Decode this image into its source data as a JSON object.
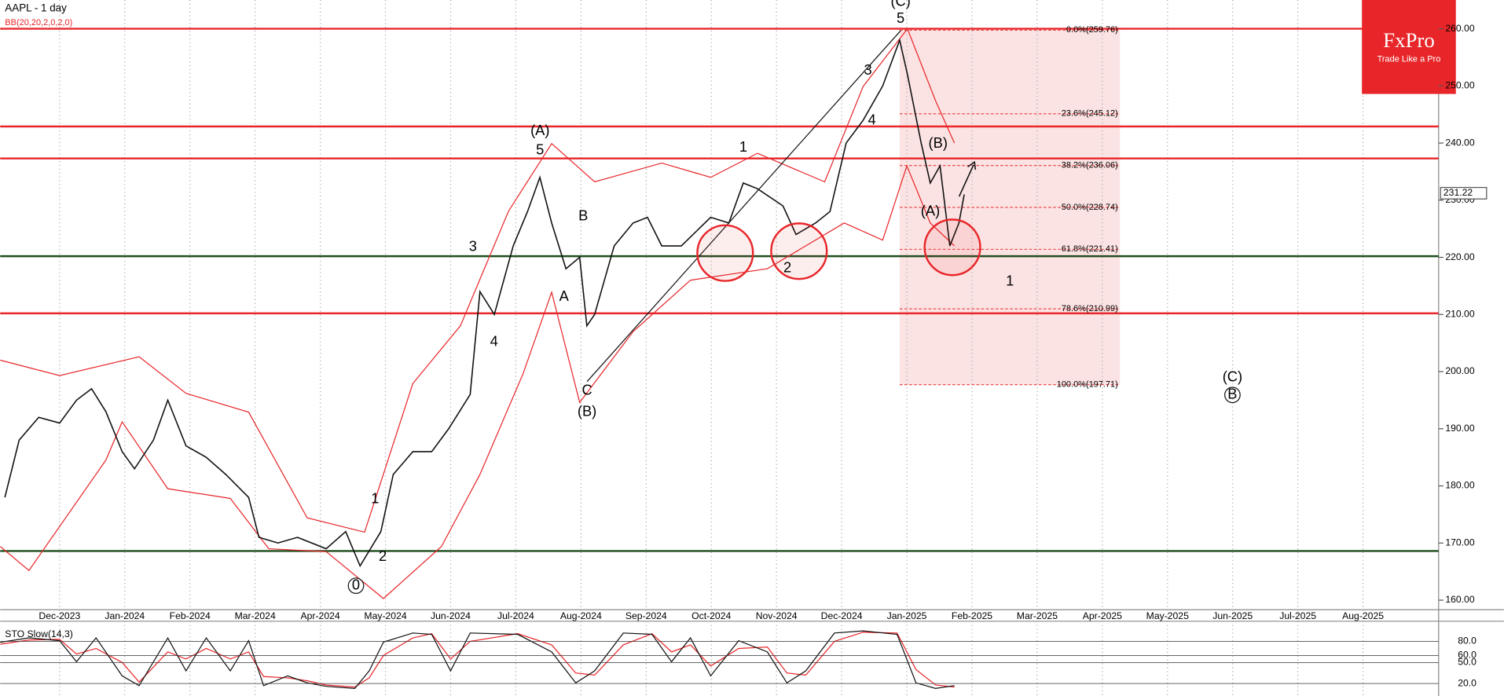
{
  "chart_data": {
    "type": "line",
    "title": "AAPL - 1 day",
    "color": "#111111",
    "x": [
      -0.84,
      -0.62,
      -0.32,
      0,
      0.26,
      0.49,
      0.71,
      0.96,
      1.15,
      1.44,
      1.66,
      1.94,
      2.25,
      2.55,
      2.9,
      3.06,
      3.35,
      3.65,
      4.09,
      4.39,
      4.61,
      4.93,
      5.12,
      5.42,
      5.71,
      5.97,
      6.3,
      6.45,
      6.67,
      6.96,
      7.18,
      7.37,
      7.55,
      7.77,
      7.98,
      8.09,
      8.21,
      8.51,
      8.8,
      9.02,
      9.24,
      9.54,
      9.99,
      10.27,
      10.49,
      10.71,
      11.1,
      11.3,
      11.6,
      11.82,
      12.07,
      12.33,
      12.63,
      12.89,
      13.01,
      13.22,
      13.36,
      13.51,
      13.66,
      13.8,
      13.88
    ],
    "values": [
      178,
      188,
      192,
      191,
      195,
      197,
      193,
      186,
      183,
      188,
      195,
      187,
      185,
      182,
      178,
      171,
      170,
      171,
      169,
      172,
      166,
      172,
      182,
      186,
      186,
      190,
      196,
      214,
      210,
      222,
      228,
      234,
      226,
      218,
      220,
      208,
      210,
      222,
      226,
      227,
      222,
      222,
      227,
      226,
      233,
      232,
      229,
      224,
      226,
      228,
      240,
      244,
      250,
      258,
      252,
      240,
      233,
      236,
      222,
      226,
      231
    ],
    "bollinger": {
      "label": "BB(20,20,2,0,2,0)",
      "color": "#e8262a",
      "upper": {
        "x": [
          -0.91,
          0,
          1.22,
          1.94,
          2.9,
          3.8,
          4.68,
          5.42,
          6.15,
          6.89,
          7.55,
          8.21,
          9.24,
          9.99,
          10.71,
          11.74,
          12.33,
          13.01,
          13.44,
          13.73
        ],
        "values": [
          202,
          199.3,
          202.6,
          196.2,
          192.9,
          174.4,
          171.9,
          197.9,
          208,
          228.1,
          239.9,
          233.2,
          236.5,
          234,
          238.2,
          233.2,
          249.9,
          260,
          247.4,
          240
        ]
      },
      "lower": {
        "x": [
          -0.91,
          -0.47,
          0.71,
          0.96,
          1.66,
          2.62,
          3.21,
          4.09,
          4.97,
          5.86,
          6.45,
          7.11,
          7.55,
          7.98,
          8.8,
          9.68,
          10.86,
          12.04,
          12.63,
          13.0,
          13.36,
          13.73
        ],
        "values": [
          169.4,
          165.2,
          184.5,
          191.2,
          179.5,
          177.8,
          169,
          168.5,
          160.3,
          169.4,
          182,
          199.6,
          213.9,
          194.6,
          207,
          216,
          218,
          226,
          223,
          236,
          226,
          222
        ]
      }
    },
    "xlim": [
      -0.912,
      21.16
    ],
    "xticks": [
      {
        "value": 0,
        "label": "Dec-2023"
      },
      {
        "value": 1,
        "label": "Jan-2024"
      },
      {
        "value": 2,
        "label": "Feb-2024"
      },
      {
        "value": 3,
        "label": "Mar-2024"
      },
      {
        "value": 4,
        "label": "Apr-2024"
      },
      {
        "value": 5,
        "label": "May-2024"
      },
      {
        "value": 6,
        "label": "Jun-2024"
      },
      {
        "value": 7,
        "label": "Jul-2024"
      },
      {
        "value": 8,
        "label": "Aug-2024"
      },
      {
        "value": 9,
        "label": "Sep-2024"
      },
      {
        "value": 10,
        "label": "Oct-2024"
      },
      {
        "value": 11,
        "label": "Nov-2024"
      },
      {
        "value": 12,
        "label": "Dec-2024"
      },
      {
        "value": 13,
        "label": "Jan-2025"
      },
      {
        "value": 14,
        "label": "Feb-2025"
      },
      {
        "value": 15,
        "label": "Mar-2025"
      },
      {
        "value": 16,
        "label": "Apr-2025"
      },
      {
        "value": 17,
        "label": "May-2025"
      },
      {
        "value": 18,
        "label": "Jun-2025"
      },
      {
        "value": 19,
        "label": "Jul-2025"
      },
      {
        "value": 20,
        "label": "Aug-2025"
      }
    ],
    "ylim": [
      158.33,
      265.03
    ],
    "yticks": [
      {
        "value": 160,
        "label": "160.00"
      },
      {
        "value": 170,
        "label": "170.00"
      },
      {
        "value": 180,
        "label": "180.00"
      },
      {
        "value": 190,
        "label": "190.00"
      },
      {
        "value": 200,
        "label": "200.00"
      },
      {
        "value": 210,
        "label": "210.00"
      },
      {
        "value": 220,
        "label": "220.00"
      },
      {
        "value": 230,
        "label": "230.00"
      },
      {
        "value": 240,
        "label": "240.00"
      },
      {
        "value": 250,
        "label": "250.00"
      },
      {
        "value": 260,
        "label": "260.00"
      }
    ],
    "last_price": 231.22,
    "levels": [
      {
        "value": 260,
        "color": "#e8262a"
      },
      {
        "value": 242.9,
        "color": "#e8262a"
      },
      {
        "value": 237.3,
        "color": "#e8262a"
      },
      {
        "value": 220.2,
        "color": "#1f4d1f"
      },
      {
        "value": 210.2,
        "color": "#e8262a"
      },
      {
        "value": 168.6,
        "color": "#1f4d1f"
      }
    ],
    "fib": {
      "x": [
        12.89,
        16.27
      ],
      "levels": [
        {
          "value": 259.76,
          "label": "0.0%(259.76)"
        },
        {
          "value": 245.12,
          "label": "23.6%(245.12)"
        },
        {
          "value": 236.06,
          "label": "38.2%(236.06)"
        },
        {
          "value": 228.74,
          "label": "50.0%(228.74)"
        },
        {
          "value": 221.41,
          "label": "61.8%(221.41)"
        },
        {
          "value": 210.99,
          "label": "78.6%(210.99)"
        },
        {
          "value": 197.71,
          "label": "100.0%(197.71)"
        }
      ]
    },
    "annotations": [
      "(A)",
      "5",
      "3",
      "4",
      "A",
      "B",
      "C",
      "(B)",
      "1",
      "2",
      "3",
      "4",
      "5",
      "(C)",
      "(B)",
      "(A)",
      "1",
      "(C)",
      "B",
      "0",
      "1",
      "2"
    ],
    "stochastic": {
      "label": "STO Slow(14,3)",
      "ylim": [
        5,
        106
      ],
      "yticks": [
        {
          "value": 80,
          "label": "80.0"
        },
        {
          "value": 60,
          "label": "60.0"
        },
        {
          "value": 50,
          "label": "50.0"
        },
        {
          "value": 20,
          "label": "20.0"
        }
      ],
      "x": [
        -0.91,
        -0.47,
        0,
        0.26,
        0.56,
        0.96,
        1.22,
        1.66,
        1.94,
        2.25,
        2.62,
        2.9,
        3.13,
        3.5,
        3.8,
        4.09,
        4.53,
        4.75,
        4.97,
        5.42,
        5.71,
        6.0,
        6.3,
        7.03,
        7.55,
        7.92,
        8.21,
        8.65,
        9.09,
        9.39,
        9.68,
        9.99,
        10.42,
        10.86,
        11.16,
        11.45,
        11.89,
        12.33,
        12.85,
        13.14,
        13.44,
        13.73
      ],
      "k": [
        78.7,
        85,
        81,
        51,
        85,
        31,
        17,
        85,
        38,
        85,
        38,
        81,
        17,
        31,
        21,
        16,
        13,
        38,
        79,
        92,
        90,
        38,
        92,
        90,
        65,
        21,
        38,
        92,
        90,
        51,
        85,
        31,
        81,
        65,
        21,
        38,
        92,
        95,
        90,
        21,
        13,
        17
      ],
      "d": [
        76,
        82,
        83,
        62,
        70,
        50,
        22,
        65,
        55,
        70,
        55,
        65,
        30,
        28,
        24,
        18,
        15,
        28,
        60,
        85,
        91,
        55,
        80,
        91,
        75,
        35,
        32,
        75,
        91,
        65,
        75,
        45,
        70,
        72,
        35,
        32,
        80,
        93,
        92,
        40,
        18,
        15
      ]
    },
    "logo": {
      "name": "FxPro",
      "slogan": "Trade Like a Pro"
    }
  }
}
